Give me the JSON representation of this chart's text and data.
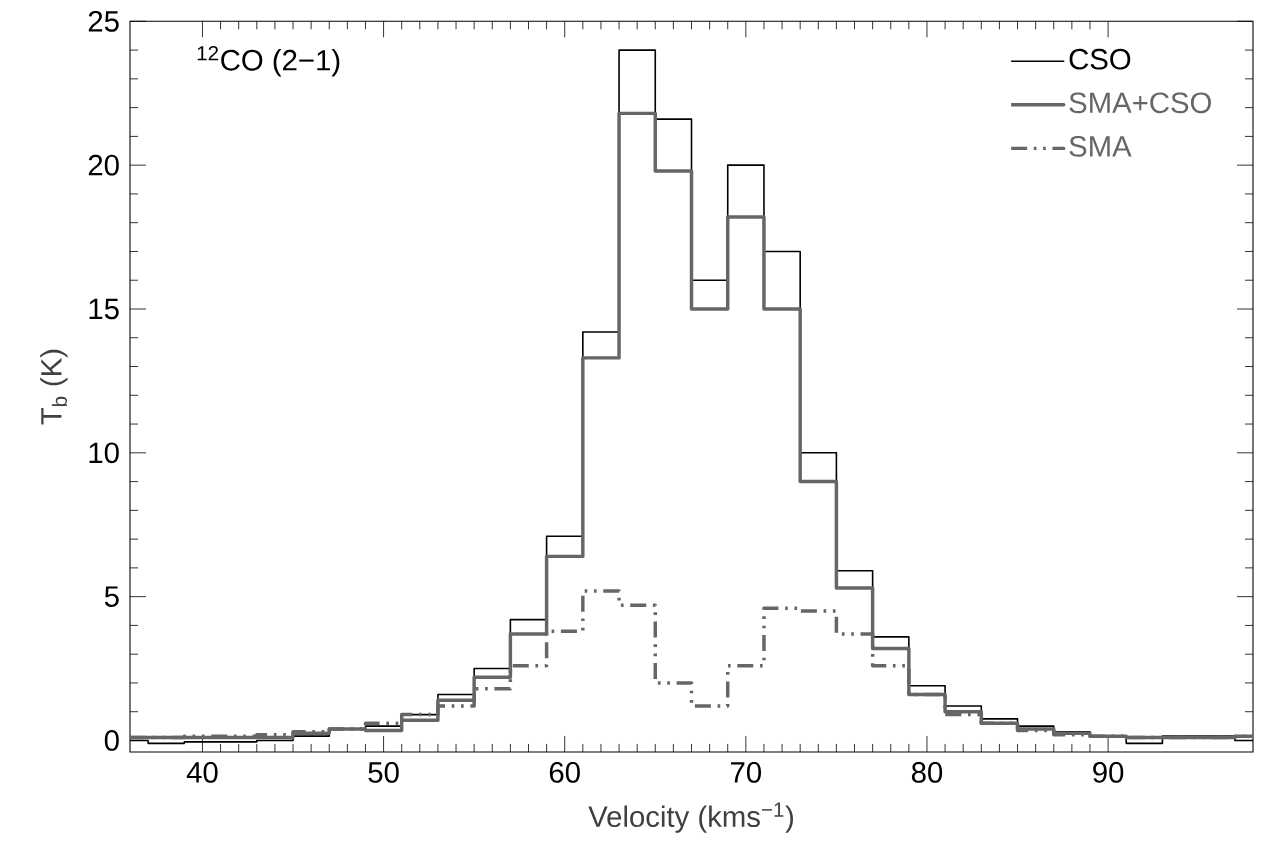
{
  "chart_data": {
    "type": "step",
    "xlabel": "Velocity (kms$^{−1}$)",
    "ylabel": "T$_{b}$ (K)",
    "annotations": [
      "$^{12}$CO (2−1)"
    ],
    "x": [
      36,
      38,
      40,
      42,
      44,
      46,
      48,
      50,
      52,
      54,
      56,
      58,
      60,
      62,
      64,
      66,
      68,
      70,
      72,
      74,
      76,
      78,
      80,
      82,
      84,
      86,
      88,
      90,
      92,
      94,
      96,
      98
    ],
    "series": [
      {
        "name": "CSO",
        "color": "#000000",
        "line_style": "solid",
        "values": [
          0.0,
          -0.1,
          -0.05,
          -0.05,
          0.0,
          0.15,
          0.4,
          0.5,
          0.9,
          1.6,
          2.5,
          4.2,
          7.1,
          14.2,
          24.0,
          21.6,
          16.0,
          20.0,
          17.0,
          10.0,
          5.9,
          3.6,
          1.9,
          1.2,
          0.75,
          0.5,
          0.3,
          0.15,
          -0.1,
          0.15,
          0.15,
          0.0
        ]
      },
      {
        "name": "SMA+CSO",
        "color": "#666666",
        "line_style": "solid",
        "values": [
          0.1,
          0.1,
          0.1,
          0.1,
          0.1,
          0.25,
          0.4,
          0.35,
          0.7,
          1.4,
          2.2,
          3.7,
          6.4,
          13.3,
          21.8,
          19.8,
          15.0,
          18.2,
          15.0,
          9.0,
          5.3,
          3.2,
          1.6,
          1.0,
          0.6,
          0.4,
          0.25,
          0.15,
          0.1,
          0.1,
          0.1,
          0.15
        ]
      },
      {
        "name": "SMA",
        "color": "#666666",
        "line_style": "dashed",
        "values": [
          0.1,
          0.1,
          0.15,
          0.15,
          0.2,
          0.3,
          0.4,
          0.6,
          0.9,
          1.2,
          1.8,
          2.6,
          3.8,
          5.2,
          4.7,
          2.0,
          1.2,
          2.6,
          4.6,
          4.5,
          3.7,
          2.6,
          1.6,
          0.9,
          0.6,
          0.35,
          0.2,
          0.15,
          0.1,
          0.1,
          0.1,
          0.15
        ]
      }
    ],
    "xlim": [
      36,
      98
    ],
    "ylim": [
      -0.4,
      25
    ],
    "xticks": [
      40,
      50,
      60,
      70,
      80,
      90
    ],
    "yticks": [
      0,
      5,
      10,
      15,
      20,
      25
    ],
    "legend": "top right",
    "grid": false,
    "marker": "none"
  }
}
